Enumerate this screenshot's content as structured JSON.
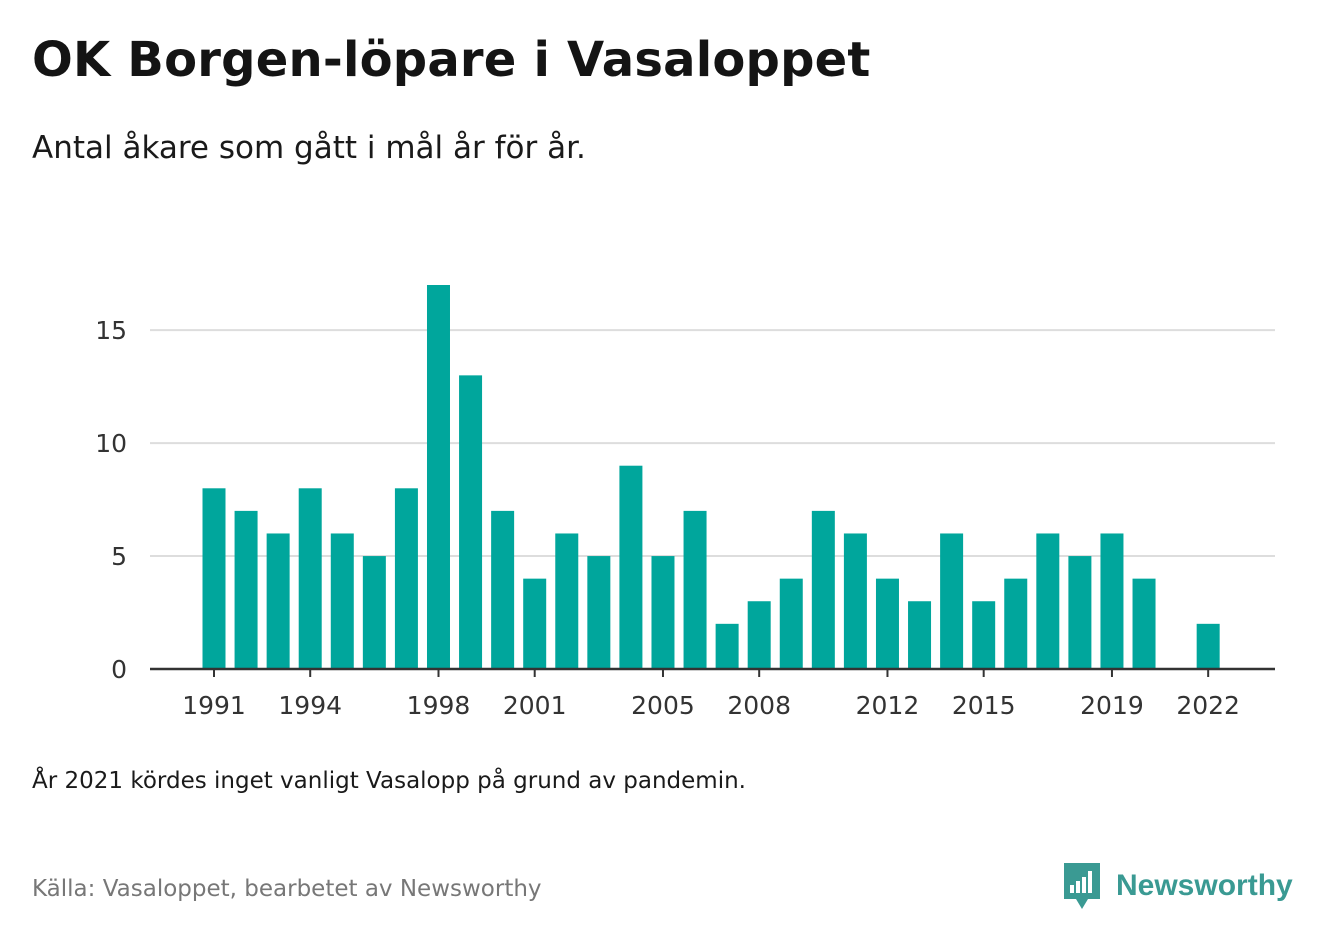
{
  "header": {
    "title": "OK Borgen-löpare i Vasaloppet",
    "subtitle": "Antal åkare som gått i mål år för år."
  },
  "footer": {
    "note": "År 2021 kördes inget vanligt Vasalopp på grund av pandemin.",
    "source": "Källa: Vasaloppet, bearbetet av Newsworthy",
    "logo_text": "Newsworthy"
  },
  "colors": {
    "bar": "#00a69c",
    "grid": "#dddddd",
    "axis": "#333333",
    "brand": "#3a9a93"
  },
  "chart_data": {
    "type": "bar",
    "title": "OK Borgen-löpare i Vasaloppet",
    "subtitle": "Antal åkare som gått i mål år för år.",
    "xlabel": "",
    "ylabel": "",
    "ylim": [
      0,
      17
    ],
    "yticks": [
      0,
      5,
      10,
      15
    ],
    "grid": true,
    "xtick_labels": [
      "1991",
      "1994",
      "1998",
      "2001",
      "2005",
      "2008",
      "2012",
      "2015",
      "2019",
      "2022"
    ],
    "categories": [
      "1991",
      "1992",
      "1993",
      "1994",
      "1995",
      "1996",
      "1997",
      "1998",
      "1999",
      "2000",
      "2001",
      "2002",
      "2003",
      "2004",
      "2005",
      "2006",
      "2007",
      "2008",
      "2009",
      "2010",
      "2011",
      "2012",
      "2013",
      "2014",
      "2015",
      "2016",
      "2017",
      "2018",
      "2019",
      "2020",
      "2021",
      "2022"
    ],
    "values": [
      8,
      7,
      6,
      8,
      6,
      5,
      8,
      17,
      13,
      7,
      4,
      6,
      5,
      9,
      5,
      7,
      2,
      3,
      4,
      7,
      6,
      4,
      3,
      6,
      3,
      4,
      6,
      5,
      6,
      4,
      0,
      2
    ]
  }
}
